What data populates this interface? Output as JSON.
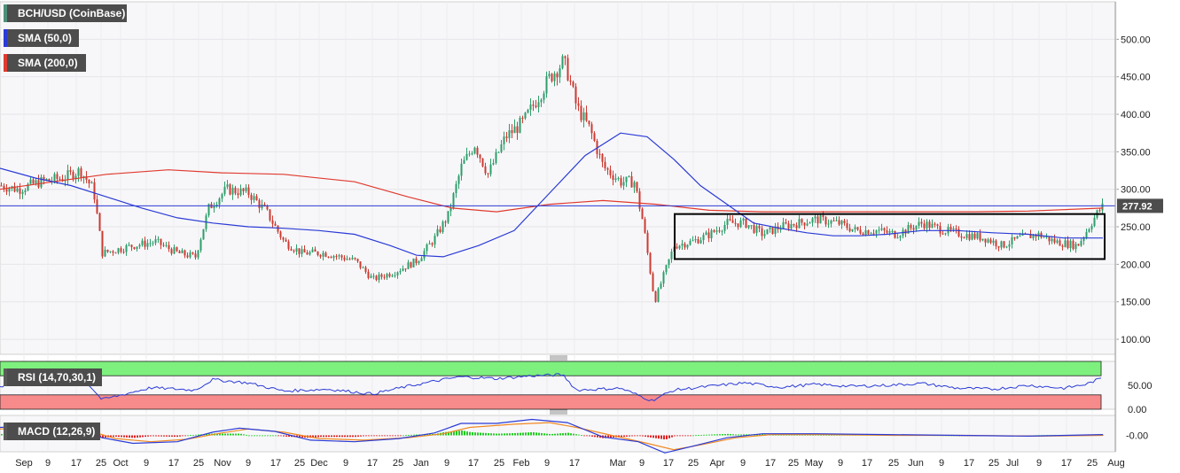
{
  "legends": {
    "main": "BCH/USD (CoinBase)",
    "sma50": "SMA (50,0)",
    "sma200": "SMA (200,0)",
    "rsi": "RSI (14,70,30,1)",
    "macd": "MACD (12,26,9)"
  },
  "colors": {
    "up": "#2e9e6b",
    "down": "#cc3b33",
    "sma50": "#2b3bd6",
    "sma200": "#e03a2f",
    "rsi_overbought": "#7ef07e",
    "rsi_oversold": "#f78a8a",
    "macd_line": "#2b3bd6",
    "signal_line": "#f08a24",
    "legend_main_accent": "#4f8f7a",
    "legend_sma50_accent": "#2b3bd6",
    "legend_sma200_accent": "#e03a2f",
    "price_tag": "#4d4d4d"
  },
  "chart_data": [
    {
      "type": "candlestick",
      "panel": "price",
      "ylim": [
        80,
        550
      ],
      "yticks": [
        100,
        150,
        200,
        250,
        300,
        350,
        400,
        450,
        500
      ],
      "ytick_labels": [
        "100.00",
        "150.00",
        "200.00",
        "250.00",
        "300.00",
        "350.00",
        "400.00",
        "450.00",
        "500.00"
      ],
      "current_price": 277.92,
      "current_price_label": "277.92",
      "close_path": [
        [
          0,
          305
        ],
        [
          20,
          300
        ],
        [
          45,
          310
        ],
        [
          70,
          315
        ],
        [
          90,
          325
        ],
        [
          105,
          300
        ],
        [
          115,
          215
        ],
        [
          150,
          225
        ],
        [
          175,
          230
        ],
        [
          200,
          215
        ],
        [
          220,
          210
        ],
        [
          235,
          275
        ],
        [
          255,
          300
        ],
        [
          280,
          295
        ],
        [
          300,
          270
        ],
        [
          320,
          230
        ],
        [
          340,
          215
        ],
        [
          365,
          215
        ],
        [
          400,
          205
        ],
        [
          420,
          180
        ],
        [
          445,
          190
        ],
        [
          470,
          205
        ],
        [
          490,
          235
        ],
        [
          505,
          265
        ],
        [
          520,
          330
        ],
        [
          535,
          360
        ],
        [
          550,
          320
        ],
        [
          570,
          370
        ],
        [
          590,
          390
        ],
        [
          605,
          420
        ],
        [
          620,
          450
        ],
        [
          635,
          470
        ],
        [
          640,
          455
        ],
        [
          650,
          410
        ],
        [
          665,
          380
        ],
        [
          680,
          330
        ],
        [
          700,
          310
        ],
        [
          715,
          310
        ],
        [
          725,
          255
        ],
        [
          738,
          150
        ],
        [
          748,
          185
        ],
        [
          760,
          225
        ],
        [
          780,
          230
        ],
        [
          800,
          240
        ],
        [
          820,
          255
        ],
        [
          840,
          255
        ],
        [
          860,
          240
        ],
        [
          880,
          250
        ],
        [
          900,
          255
        ],
        [
          920,
          260
        ],
        [
          945,
          255
        ],
        [
          965,
          245
        ],
        [
          990,
          245
        ],
        [
          1010,
          240
        ],
        [
          1040,
          255
        ],
        [
          1065,
          245
        ],
        [
          1085,
          240
        ],
        [
          1110,
          235
        ],
        [
          1130,
          225
        ],
        [
          1150,
          235
        ],
        [
          1170,
          240
        ],
        [
          1190,
          230
        ],
        [
          1215,
          225
        ],
        [
          1228,
          250
        ],
        [
          1238,
          270
        ],
        [
          1244,
          278
        ]
      ],
      "sma50_path": [
        [
          0,
          328
        ],
        [
          40,
          315
        ],
        [
          80,
          305
        ],
        [
          120,
          290
        ],
        [
          160,
          275
        ],
        [
          200,
          262
        ],
        [
          240,
          255
        ],
        [
          280,
          250
        ],
        [
          320,
          248
        ],
        [
          360,
          245
        ],
        [
          400,
          240
        ],
        [
          440,
          225
        ],
        [
          470,
          212
        ],
        [
          500,
          210
        ],
        [
          540,
          225
        ],
        [
          580,
          245
        ],
        [
          620,
          295
        ],
        [
          660,
          345
        ],
        [
          700,
          375
        ],
        [
          730,
          370
        ],
        [
          760,
          340
        ],
        [
          790,
          305
        ],
        [
          820,
          280
        ],
        [
          850,
          255
        ],
        [
          880,
          248
        ],
        [
          910,
          242
        ],
        [
          940,
          238
        ],
        [
          970,
          238
        ],
        [
          1000,
          240
        ],
        [
          1040,
          245
        ],
        [
          1080,
          245
        ],
        [
          1120,
          242
        ],
        [
          1160,
          240
        ],
        [
          1200,
          235
        ],
        [
          1244,
          235
        ]
      ],
      "sma200_path": [
        [
          0,
          300
        ],
        [
          60,
          310
        ],
        [
          120,
          320
        ],
        [
          190,
          326
        ],
        [
          250,
          322
        ],
        [
          320,
          320
        ],
        [
          400,
          310
        ],
        [
          460,
          290
        ],
        [
          510,
          275
        ],
        [
          560,
          270
        ],
        [
          620,
          280
        ],
        [
          680,
          285
        ],
        [
          740,
          280
        ],
        [
          800,
          272
        ],
        [
          860,
          270
        ],
        [
          920,
          270
        ],
        [
          980,
          270
        ],
        [
          1040,
          270
        ],
        [
          1100,
          270
        ],
        [
          1160,
          271
        ],
        [
          1244,
          275
        ]
      ],
      "range_box": {
        "low": 207,
        "high": 267,
        "x_from": 761,
        "x_to": 1246
      },
      "xticks": [
        {
          "x": 27,
          "label": "Sep"
        },
        {
          "x": 54,
          "label": "9"
        },
        {
          "x": 86,
          "label": "17"
        },
        {
          "x": 114,
          "label": "25"
        },
        {
          "x": 136,
          "label": "Oct"
        },
        {
          "x": 165,
          "label": "9"
        },
        {
          "x": 196,
          "label": "17"
        },
        {
          "x": 224,
          "label": "25"
        },
        {
          "x": 251,
          "label": "Nov"
        },
        {
          "x": 280,
          "label": "9"
        },
        {
          "x": 311,
          "label": "17"
        },
        {
          "x": 338,
          "label": "25"
        },
        {
          "x": 360,
          "label": "Dec"
        },
        {
          "x": 390,
          "label": "9"
        },
        {
          "x": 420,
          "label": "17"
        },
        {
          "x": 449,
          "label": "25"
        },
        {
          "x": 475,
          "label": "Jan"
        },
        {
          "x": 504,
          "label": "9"
        },
        {
          "x": 534,
          "label": "17"
        },
        {
          "x": 563,
          "label": "25"
        },
        {
          "x": 588,
          "label": "Feb"
        },
        {
          "x": 617,
          "label": "9"
        },
        {
          "x": 648,
          "label": "17"
        },
        {
          "x": 697,
          "label": "Mar"
        },
        {
          "x": 724,
          "label": "9"
        },
        {
          "x": 754,
          "label": "17"
        },
        {
          "x": 782,
          "label": "25"
        },
        {
          "x": 809,
          "label": "Apr"
        },
        {
          "x": 838,
          "label": "9"
        },
        {
          "x": 869,
          "label": "17"
        },
        {
          "x": 895,
          "label": "25"
        },
        {
          "x": 918,
          "label": "May"
        },
        {
          "x": 948,
          "label": "9"
        },
        {
          "x": 978,
          "label": "17"
        },
        {
          "x": 1008,
          "label": "25"
        },
        {
          "x": 1033,
          "label": "Jun"
        },
        {
          "x": 1062,
          "label": "9"
        },
        {
          "x": 1093,
          "label": "17"
        },
        {
          "x": 1121,
          "label": "25"
        },
        {
          "x": 1142,
          "label": "Jul"
        },
        {
          "x": 1172,
          "label": "9"
        },
        {
          "x": 1203,
          "label": "17"
        },
        {
          "x": 1232,
          "label": "25"
        },
        {
          "x": 1259,
          "label": "Aug"
        }
      ]
    },
    {
      "type": "line",
      "panel": "rsi",
      "ylim": [
        0,
        100
      ],
      "yticks": [
        0,
        50
      ],
      "ytick_labels": [
        "0.00",
        "50.00"
      ],
      "overbought": 70,
      "oversold": 30,
      "series": [
        {
          "values_path": [
            [
              0,
              48
            ],
            [
              60,
              58
            ],
            [
              100,
              52
            ],
            [
              115,
              20
            ],
            [
              170,
              45
            ],
            [
              220,
              40
            ],
            [
              240,
              62
            ],
            [
              280,
              55
            ],
            [
              320,
              38
            ],
            [
              370,
              42
            ],
            [
              420,
              32
            ],
            [
              460,
              48
            ],
            [
              500,
              62
            ],
            [
              520,
              68
            ],
            [
              560,
              64
            ],
            [
              600,
              70
            ],
            [
              635,
              72
            ],
            [
              650,
              40
            ],
            [
              700,
              44
            ],
            [
              735,
              18
            ],
            [
              760,
              40
            ],
            [
              800,
              48
            ],
            [
              840,
              55
            ],
            [
              880,
              46
            ],
            [
              920,
              52
            ],
            [
              960,
              48
            ],
            [
              1000,
              50
            ],
            [
              1040,
              54
            ],
            [
              1080,
              44
            ],
            [
              1120,
              42
            ],
            [
              1160,
              50
            ],
            [
              1200,
              44
            ],
            [
              1225,
              52
            ],
            [
              1244,
              66
            ]
          ]
        }
      ]
    },
    {
      "type": "line",
      "panel": "macd",
      "yticks": [
        0
      ],
      "ytick_labels": [
        "-0.00"
      ],
      "series": [
        {
          "name": "macd",
          "values_path": [
            [
              0,
              10
            ],
            [
              60,
              12
            ],
            [
              100,
              4
            ],
            [
              115,
              -3
            ],
            [
              150,
              -10
            ],
            [
              200,
              -8
            ],
            [
              240,
              4
            ],
            [
              270,
              9
            ],
            [
              310,
              5
            ],
            [
              350,
              -6
            ],
            [
              400,
              -8
            ],
            [
              450,
              -4
            ],
            [
              490,
              3
            ],
            [
              520,
              15
            ],
            [
              560,
              15
            ],
            [
              600,
              20
            ],
            [
              640,
              16
            ],
            [
              680,
              -2
            ],
            [
              720,
              -8
            ],
            [
              750,
              -22
            ],
            [
              780,
              -14
            ],
            [
              820,
              -3
            ],
            [
              860,
              2
            ],
            [
              920,
              2
            ],
            [
              1000,
              1
            ],
            [
              1080,
              0
            ],
            [
              1160,
              -1
            ],
            [
              1244,
              1
            ]
          ]
        },
        {
          "name": "signal",
          "values_path": [
            [
              0,
              8
            ],
            [
              60,
              10
            ],
            [
              100,
              6
            ],
            [
              130,
              -4
            ],
            [
              170,
              -8
            ],
            [
              210,
              -5
            ],
            [
              250,
              3
            ],
            [
              280,
              8
            ],
            [
              320,
              4
            ],
            [
              360,
              -4
            ],
            [
              410,
              -6
            ],
            [
              460,
              -3
            ],
            [
              500,
              2
            ],
            [
              530,
              10
            ],
            [
              580,
              14
            ],
            [
              620,
              16
            ],
            [
              650,
              10
            ],
            [
              690,
              0
            ],
            [
              730,
              -10
            ],
            [
              760,
              -18
            ],
            [
              790,
              -12
            ],
            [
              830,
              -3
            ],
            [
              870,
              1
            ],
            [
              930,
              1
            ],
            [
              1010,
              0
            ],
            [
              1090,
              0
            ],
            [
              1170,
              -1
            ],
            [
              1244,
              0
            ]
          ]
        }
      ]
    }
  ]
}
